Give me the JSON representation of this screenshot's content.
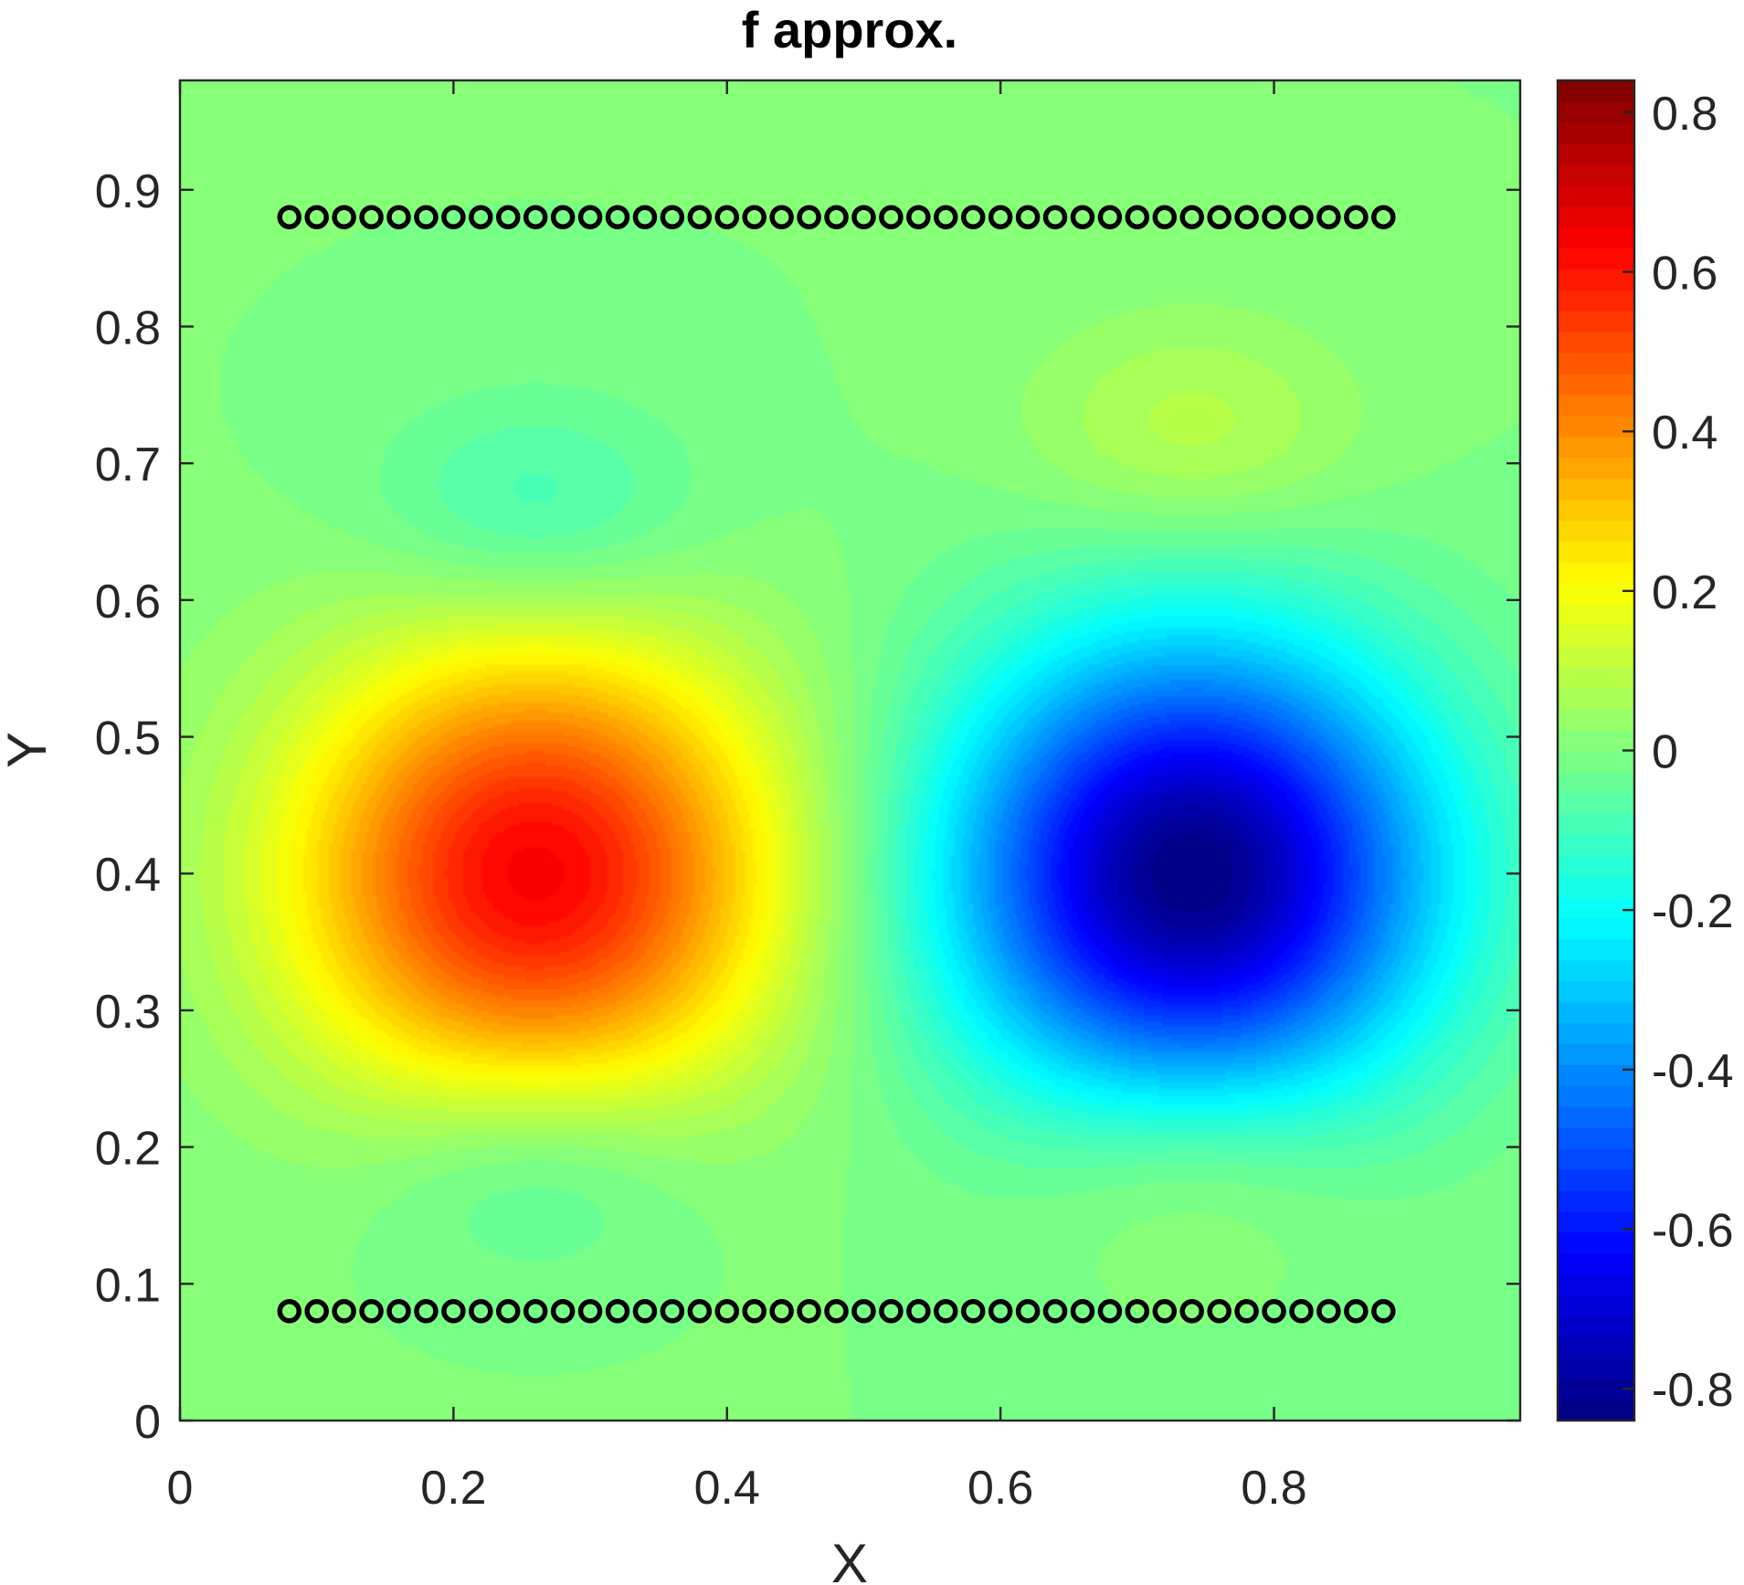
{
  "chart_data": {
    "type": "heatmap",
    "subtype": "filled-contour",
    "title": "f approx.",
    "xlabel": "X",
    "ylabel": "Y",
    "xlim": [
      0,
      0.98
    ],
    "ylim": [
      0,
      0.98
    ],
    "x_ticks": [
      0,
      0.2,
      0.4,
      0.6,
      0.8
    ],
    "x_tick_labels": [
      "0",
      "0.2",
      "0.4",
      "0.6",
      "0.8"
    ],
    "y_ticks": [
      0,
      0.1,
      0.2,
      0.3,
      0.4,
      0.5,
      0.6,
      0.7,
      0.8,
      0.9
    ],
    "y_tick_labels": [
      "0",
      "0.1",
      "0.2",
      "0.3",
      "0.4",
      "0.5",
      "0.6",
      "0.7",
      "0.8",
      "0.9"
    ],
    "colormap": "jet",
    "clim": [
      -0.84,
      0.84
    ],
    "colorbar_ticks": [
      0.8,
      0.6,
      0.4,
      0.2,
      0,
      -0.2,
      -0.4,
      -0.6,
      -0.8
    ],
    "colorbar_tick_labels": [
      "0.8",
      "0.6",
      "0.4",
      "0.2",
      "0",
      "-0.2",
      "-0.4",
      "-0.6",
      "-0.8"
    ],
    "field_extrema": [
      {
        "x": 0.26,
        "y": 0.4,
        "value": 0.64
      },
      {
        "x": 0.74,
        "y": 0.4,
        "value": -0.84
      },
      {
        "x": 0.26,
        "y": 0.66,
        "value": -0.12
      },
      {
        "x": 0.74,
        "y": 0.72,
        "value": 0.1
      },
      {
        "x": 0.26,
        "y": 0.19,
        "value": -0.12
      },
      {
        "x": 0.74,
        "y": 0.19,
        "value": 0.1
      }
    ],
    "marker_rows": [
      {
        "y": 0.88,
        "x_start": 0.08,
        "x_end": 0.88,
        "count": 41,
        "marker": "circle",
        "color": "#000000"
      },
      {
        "y": 0.08,
        "x_start": 0.08,
        "x_end": 0.88,
        "count": 41,
        "marker": "circle",
        "color": "#000000"
      }
    ],
    "grid": false
  }
}
